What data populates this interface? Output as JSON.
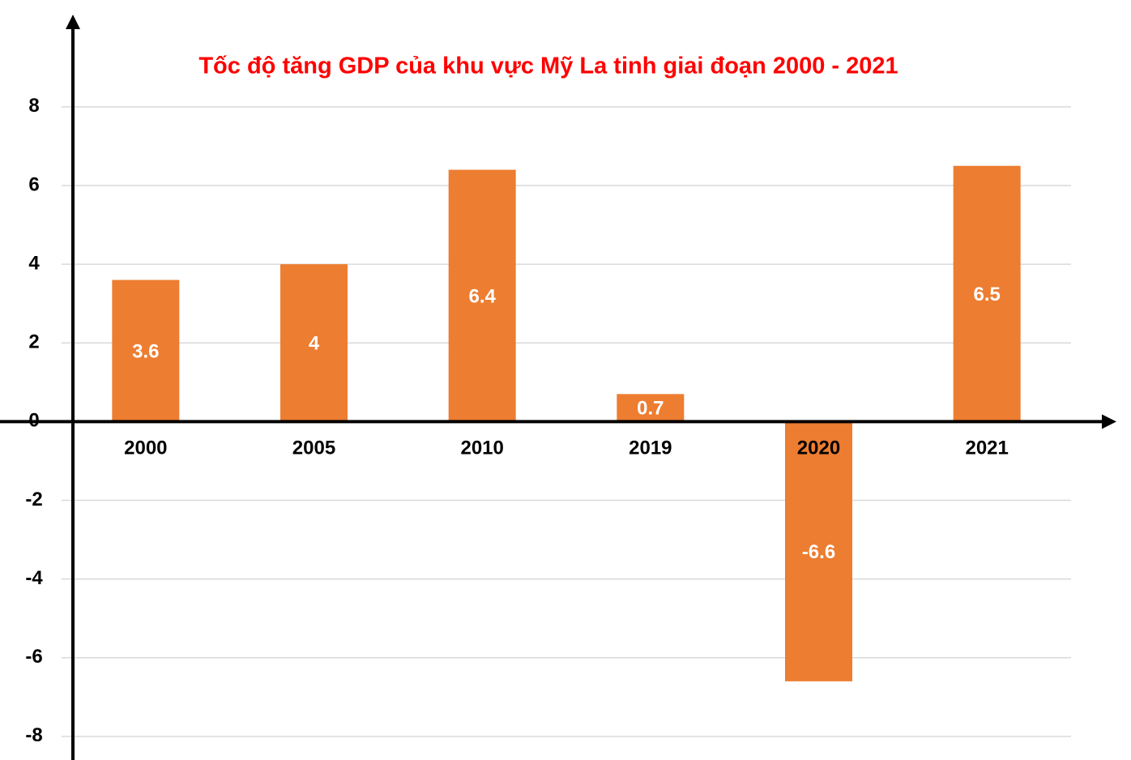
{
  "chart_data": {
    "type": "bar",
    "title": "Tốc độ tăng GDP của khu vực Mỹ La tinh giai đoạn 2000 - 2021",
    "categories": [
      "2000",
      "2005",
      "2010",
      "2019",
      "2020",
      "2021"
    ],
    "values": [
      3.6,
      4,
      6.4,
      0.7,
      -6.6,
      6.5
    ],
    "color": "#ed7d31",
    "ylim": [
      -8.6,
      10.2
    ],
    "yticks": [
      -8,
      -6,
      -4,
      -2,
      0,
      2,
      4,
      6,
      8
    ],
    "grid": true
  }
}
